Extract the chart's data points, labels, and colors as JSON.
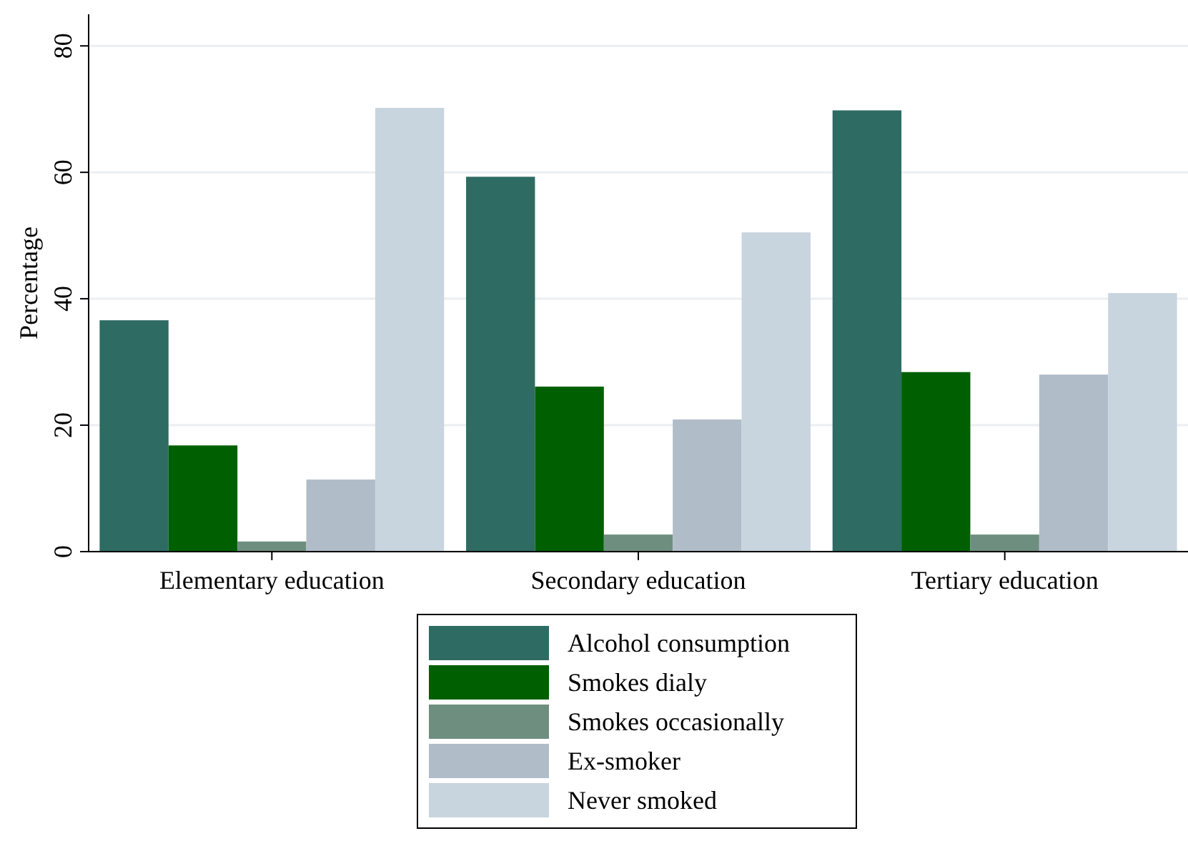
{
  "chart_data": {
    "type": "bar",
    "ylabel": "Percentage",
    "categories": [
      "Elementary education",
      "Secondary education",
      "Tertiary education"
    ],
    "series": [
      {
        "name": "Alcohol consumption",
        "color": "#2e6b63",
        "values": [
          36.6,
          59.3,
          69.8
        ]
      },
      {
        "name": "Smokes dialy",
        "color": "#005f00",
        "values": [
          16.8,
          26.1,
          28.4
        ]
      },
      {
        "name": "Smokes occasionally",
        "color": "#6e8f80",
        "values": [
          1.6,
          2.7,
          2.7
        ]
      },
      {
        "name": "Ex-smoker",
        "color": "#b0bcc8",
        "values": [
          11.4,
          20.9,
          28.0
        ]
      },
      {
        "name": "Never smoked",
        "color": "#c8d4de",
        "values": [
          70.2,
          50.5,
          40.9
        ]
      }
    ],
    "ylim": [
      0,
      85
    ],
    "yticks": [
      0,
      20,
      40,
      60,
      80
    ],
    "grid": "y",
    "legend": "bottom"
  }
}
